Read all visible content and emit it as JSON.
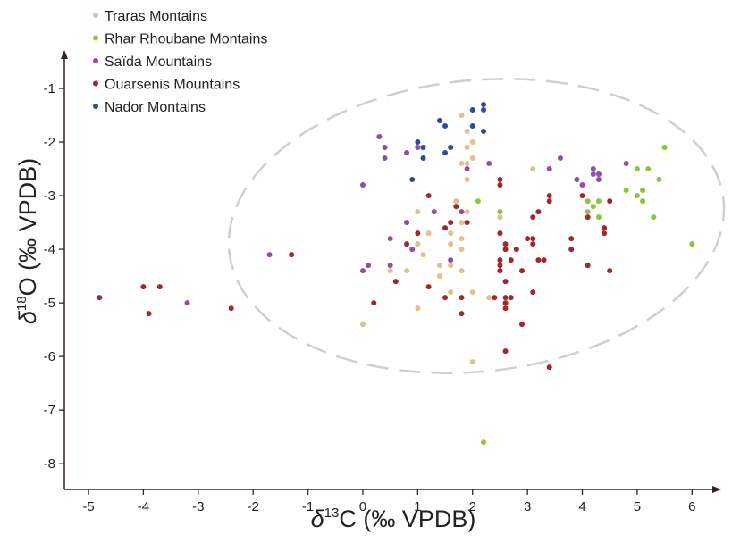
{
  "chart_data": {
    "type": "scatter",
    "xlabel": {
      "symbol": "δ",
      "sup": "13",
      "rest": "C (‰ VPDB)"
    },
    "ylabel": {
      "symbol": "δ",
      "sup": "18",
      "rest": "O (‰ VPDB)"
    },
    "xlim": [
      -5.44,
      6.5
    ],
    "ylim": [
      -8.48,
      -0.35
    ],
    "xticks": [
      -5,
      -4,
      -3,
      -2,
      -1,
      0,
      1,
      2,
      3,
      4,
      5,
      6
    ],
    "yticks": [
      -1,
      -2,
      -3,
      -4,
      -5,
      -6,
      -7,
      -8
    ],
    "legend": "top-left",
    "series": [
      {
        "name": "Traras Montains",
        "color": "#e2c08e",
        "x": [
          1.8,
          1.9,
          2.0,
          1.9,
          2.0,
          1.8,
          1.9,
          1.9,
          3.1,
          1.7,
          1.0,
          1.9,
          2.5,
          1.8,
          1.2,
          1.6,
          1.0,
          1.6,
          1.8,
          1.1,
          1.4,
          1.6,
          0.8,
          0.5,
          1.8,
          1.4,
          1.6,
          2.0,
          2.3,
          1.0,
          0.0,
          2.0,
          1.8
        ],
        "y": [
          -1.5,
          -1.8,
          -2.0,
          -2.1,
          -2.3,
          -2.4,
          -2.4,
          -2.7,
          -2.5,
          -3.1,
          -3.3,
          -3.3,
          -3.4,
          -3.5,
          -3.7,
          -3.7,
          -3.9,
          -3.9,
          -4.0,
          -4.1,
          -4.3,
          -4.3,
          -4.4,
          -4.4,
          -4.4,
          -4.5,
          -4.8,
          -4.8,
          -4.9,
          -5.1,
          -5.4,
          -6.1,
          -3.8
        ]
      },
      {
        "name": "Rhar Rhoubane Montains",
        "color": "#8cc63f",
        "x": [
          5.5,
          5.0,
          5.2,
          4.3,
          5.4,
          4.8,
          5.1,
          5.0,
          4.1,
          4.3,
          5.1,
          4.2,
          4.1,
          4.3,
          5.3,
          6.0,
          2.1,
          2.5,
          2.2
        ],
        "y": [
          -2.1,
          -2.5,
          -2.5,
          -2.6,
          -2.7,
          -2.9,
          -2.9,
          -3.0,
          -3.1,
          -3.1,
          -3.1,
          -3.2,
          -3.3,
          -3.4,
          -3.4,
          -3.9,
          -3.1,
          -3.3,
          -7.6
        ]
      },
      {
        "name": "Saïda Mountains",
        "color": "#8e4fa8",
        "x": [
          0.3,
          0.4,
          0.4,
          0.0,
          1.0,
          0.8,
          1.9,
          2.3,
          3.6,
          3.4,
          4.2,
          4.3,
          4.8,
          4.2,
          3.9,
          4.0,
          4.3,
          1.3,
          1.8,
          0.8,
          0.5,
          0.9,
          1.6,
          -1.7,
          0.1,
          0.5,
          0.0,
          -3.2
        ],
        "y": [
          -1.9,
          -2.1,
          -2.3,
          -2.8,
          -2.1,
          -2.2,
          -2.5,
          -2.4,
          -2.3,
          -2.5,
          -2.5,
          -2.6,
          -2.4,
          -2.6,
          -2.7,
          -2.8,
          -2.7,
          -3.3,
          -3.3,
          -3.5,
          -3.8,
          -4.0,
          -4.2,
          -4.1,
          -4.3,
          -4.3,
          -4.4,
          -5.0
        ]
      },
      {
        "name": "Ouarsenis Mountains",
        "color": "#a3262a",
        "x": [
          2.5,
          1.2,
          2.5,
          3.4,
          3.4,
          4.0,
          4.5,
          1.7,
          3.2,
          1.9,
          3.1,
          4.1,
          4.4,
          4.4,
          1.5,
          1.6,
          1.0,
          2.5,
          0.8,
          2.6,
          3.0,
          3.1,
          2.6,
          2.8,
          3.1,
          3.8,
          3.8,
          -1.3,
          2.5,
          2.5,
          2.7,
          3.2,
          3.3,
          4.1,
          4.5,
          2.9,
          2.5,
          2.6,
          0.6,
          1.2,
          1.5,
          2.4,
          2.6,
          2.7,
          3.1,
          2.6,
          1.8,
          0.2,
          2.6,
          1.8,
          2.9,
          2.6,
          3.4,
          -2.4,
          -4.8,
          -4.0,
          -3.7,
          -3.9
        ],
        "y": [
          -2.8,
          -3.0,
          -2.7,
          -3.0,
          -3.1,
          -3.0,
          -3.1,
          -3.2,
          -3.3,
          -3.5,
          -3.4,
          -3.4,
          -3.6,
          -3.7,
          -3.6,
          -3.5,
          -3.7,
          -3.7,
          -3.9,
          -3.9,
          -3.8,
          -3.8,
          -4.0,
          -4.0,
          -3.9,
          -3.8,
          -4.0,
          -4.1,
          -4.2,
          -4.3,
          -4.2,
          -4.2,
          -4.2,
          -4.3,
          -4.4,
          -4.4,
          -4.4,
          -4.6,
          -4.6,
          -4.7,
          -4.9,
          -4.9,
          -4.9,
          -4.9,
          -4.8,
          -5.1,
          -4.9,
          -5.0,
          -5.0,
          -5.2,
          -5.4,
          -5.9,
          -6.2,
          -5.1,
          -4.9,
          -4.7,
          -4.7,
          -5.2
        ]
      },
      {
        "name": "Nador Montains",
        "color": "#2f4a9e",
        "x": [
          2.2,
          2.0,
          2.2,
          1.4,
          1.5,
          2.0,
          2.2,
          1.0,
          1.1,
          1.5,
          1.6,
          1.1,
          0.9
        ],
        "y": [
          -1.3,
          -1.4,
          -1.4,
          -1.6,
          -1.7,
          -1.7,
          -1.8,
          -2.0,
          -2.1,
          -2.2,
          -2.1,
          -2.3,
          -2.7
        ]
      }
    ]
  }
}
